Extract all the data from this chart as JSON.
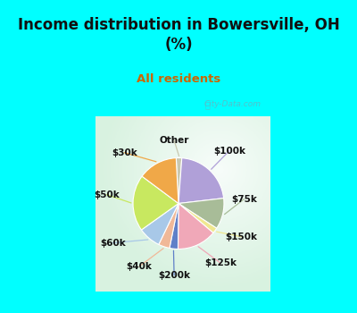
{
  "title": "Income distribution in Bowersville, OH\n(%)",
  "subtitle": "All residents",
  "title_color": "#111111",
  "subtitle_color": "#cc6600",
  "background_cyan": "#00ffff",
  "labels": [
    "Other",
    "$100k",
    "$75k",
    "$150k",
    "$125k",
    "$200k",
    "$40k",
    "$60k",
    "$50k",
    "$30k"
  ],
  "sizes": [
    2,
    22,
    11,
    2,
    14,
    3,
    4,
    8,
    20,
    14
  ],
  "colors": [
    "#c8c8b0",
    "#b0a0d8",
    "#a8bc98",
    "#f0e890",
    "#f0a8b8",
    "#6080c8",
    "#f0b898",
    "#a8c8e8",
    "#c8e860",
    "#f0a848"
  ],
  "startangle": 93,
  "label_fontsize": 7.5,
  "watermark": "City-Data.com"
}
